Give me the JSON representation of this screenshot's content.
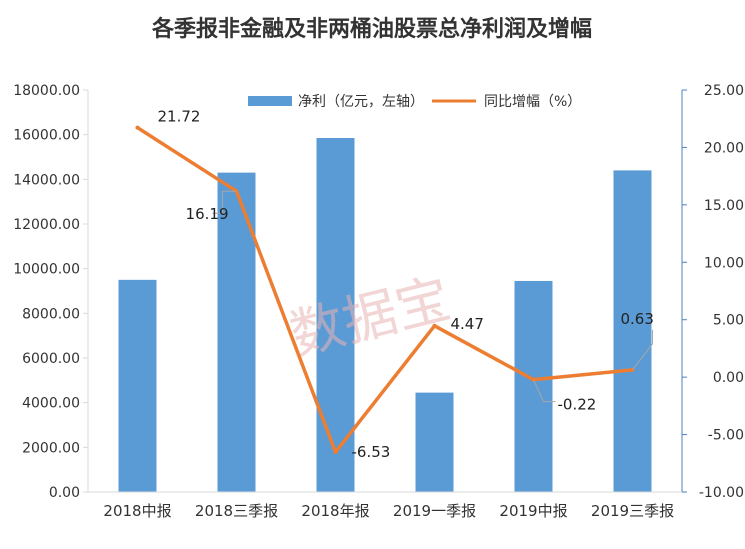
{
  "chart_data": {
    "type": "bar",
    "title": "各季报非金融及非两桶油股票总净利润及增幅",
    "categories": [
      "2018中报",
      "2018三季报",
      "2018年报",
      "2019一季报",
      "2019中报",
      "2019三季报"
    ],
    "series": [
      {
        "name": "净利（亿元，左轴）",
        "type": "bar",
        "axis": "left",
        "values": [
          9500,
          14300,
          15850,
          4450,
          9450,
          14400
        ]
      },
      {
        "name": "同比增幅（%）",
        "type": "line",
        "axis": "right",
        "values": [
          21.72,
          16.19,
          -6.53,
          4.47,
          -0.22,
          0.63
        ],
        "labels": [
          "21.72",
          "16.19",
          "-6.53",
          "4.47",
          "-0.22",
          "0.63"
        ]
      }
    ],
    "y_left": {
      "min": 0,
      "max": 18000,
      "ticks": [
        "0.00",
        "2000.00",
        "4000.00",
        "6000.00",
        "8000.00",
        "10000.00",
        "12000.00",
        "14000.00",
        "16000.00",
        "18000.00"
      ]
    },
    "y_right": {
      "min": -10,
      "max": 25,
      "ticks": [
        "-10.00",
        "-5.00",
        "0.00",
        "5.00",
        "10.00",
        "15.00",
        "20.00",
        "25.00"
      ]
    },
    "legend_position": "top-center",
    "grid": false,
    "colors": {
      "bar": "#5b9bd5",
      "line": "#ed7d31",
      "axis": "#d9d9d9",
      "right_axis": "#4f81bd",
      "callout": "#a6a6a6"
    },
    "watermark": "数据宝"
  }
}
